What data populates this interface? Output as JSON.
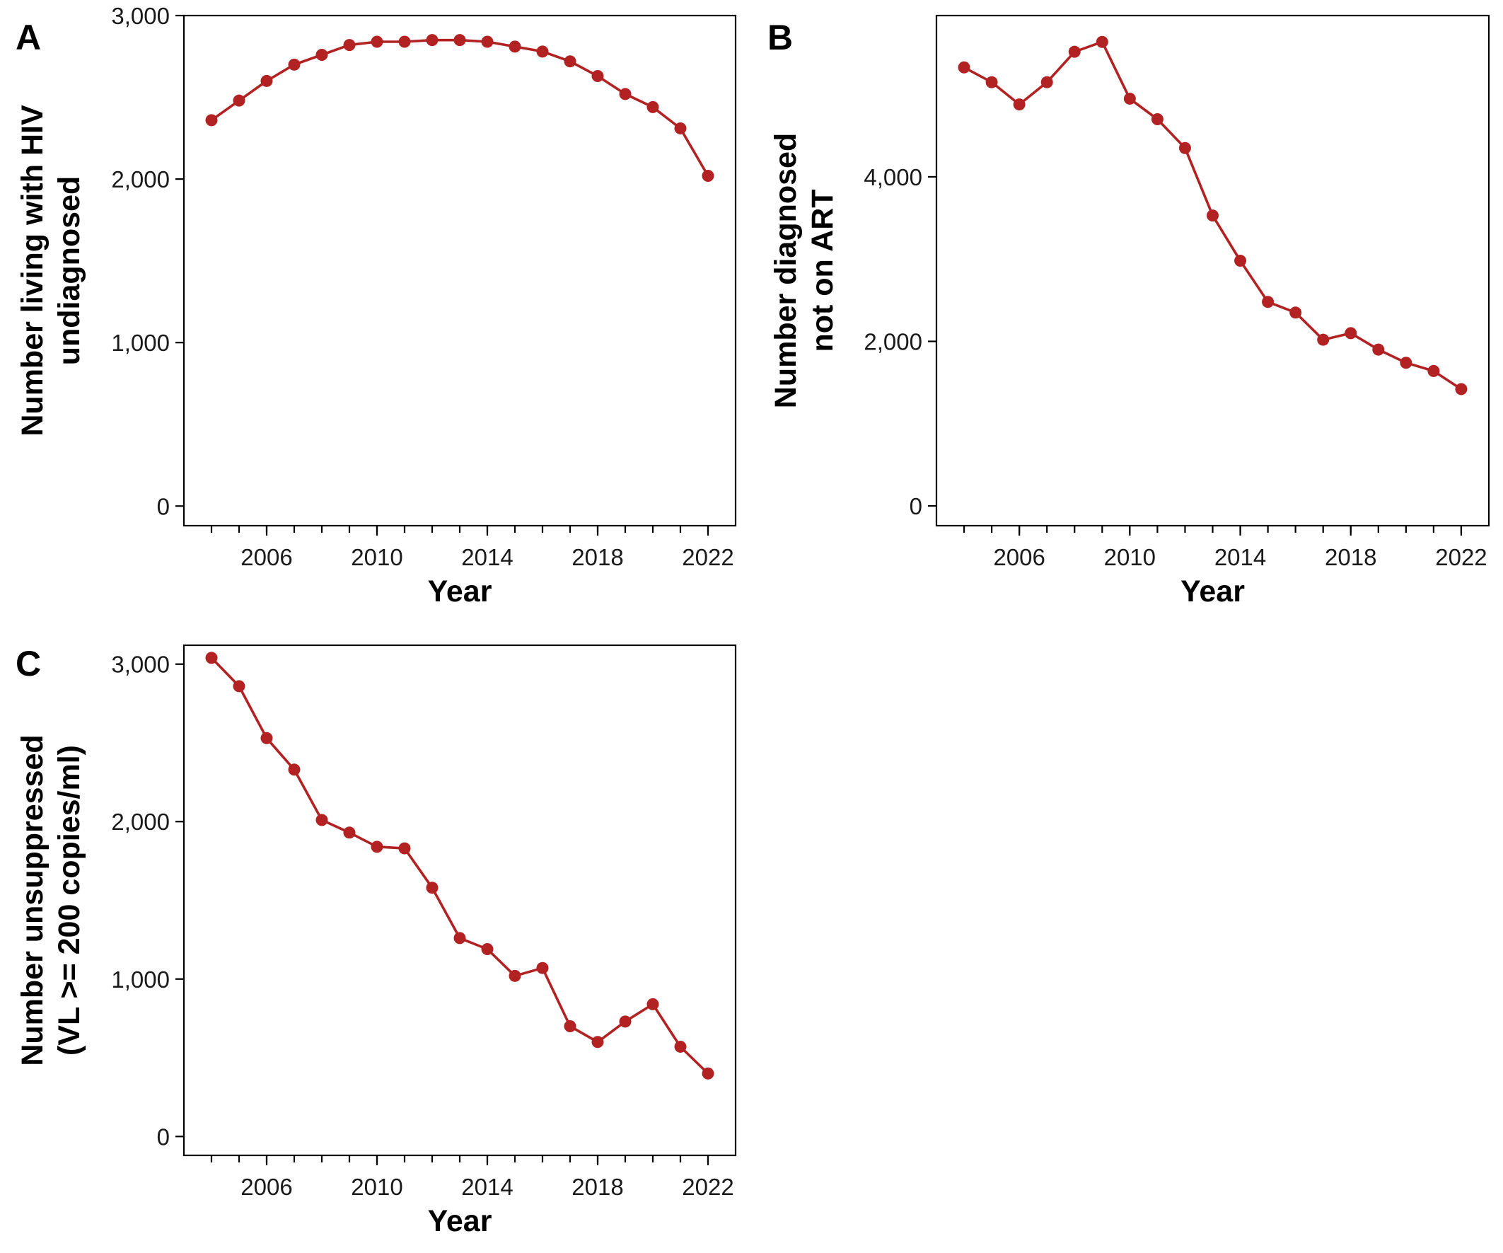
{
  "style": {
    "line_color": "#B22222",
    "point_color": "#B22222",
    "axis_color": "#000000",
    "background": "#ffffff"
  },
  "chart_data": [
    {
      "id": "A",
      "panel_label": "A",
      "type": "line",
      "xlabel": "Year",
      "ylabel": [
        "Number living with HIV",
        "undiagnosed"
      ],
      "x": [
        2004,
        2005,
        2006,
        2007,
        2008,
        2009,
        2010,
        2011,
        2012,
        2013,
        2014,
        2015,
        2016,
        2017,
        2018,
        2019,
        2020,
        2021,
        2022
      ],
      "series": [
        {
          "values": [
            2360,
            2480,
            2600,
            2700,
            2760,
            2820,
            2840,
            2840,
            2850,
            2850,
            2840,
            2810,
            2780,
            2720,
            2630,
            2520,
            2440,
            2310,
            2020
          ]
        }
      ],
      "xlim": [
        2003,
        2023
      ],
      "ylim": [
        -120,
        3000
      ],
      "xticks": [
        2006,
        2010,
        2014,
        2018,
        2022
      ],
      "xticks_minor": [
        2004,
        2005,
        2006,
        2007,
        2008,
        2009,
        2010,
        2011,
        2012,
        2013,
        2014,
        2015,
        2016,
        2017,
        2018,
        2019,
        2020,
        2021,
        2022
      ],
      "yticks": [
        0,
        1000,
        2000,
        3000
      ],
      "ytick_labels": [
        "0",
        "1,000",
        "2,000",
        "3,000"
      ],
      "grid": false,
      "legend": "none"
    },
    {
      "id": "B",
      "panel_label": "B",
      "type": "line",
      "xlabel": "Year",
      "ylabel": [
        "Number diagnosed",
        "not on ART"
      ],
      "x": [
        2004,
        2005,
        2006,
        2007,
        2008,
        2009,
        2010,
        2011,
        2012,
        2013,
        2014,
        2015,
        2016,
        2017,
        2018,
        2019,
        2020,
        2021,
        2022
      ],
      "series": [
        {
          "values": [
            5330,
            5150,
            4880,
            5150,
            5520,
            5640,
            4950,
            4700,
            4350,
            3530,
            2980,
            2480,
            2350,
            2020,
            2100,
            1900,
            1740,
            1640,
            1420
          ]
        }
      ],
      "xlim": [
        2003,
        2023
      ],
      "ylim": [
        -240,
        5960
      ],
      "xticks": [
        2006,
        2010,
        2014,
        2018,
        2022
      ],
      "xticks_minor": [
        2004,
        2005,
        2006,
        2007,
        2008,
        2009,
        2010,
        2011,
        2012,
        2013,
        2014,
        2015,
        2016,
        2017,
        2018,
        2019,
        2020,
        2021,
        2022
      ],
      "yticks": [
        0,
        2000,
        4000
      ],
      "ytick_labels": [
        "0",
        "2,000",
        "4,000"
      ],
      "grid": false,
      "legend": "none"
    },
    {
      "id": "C",
      "panel_label": "C",
      "type": "line",
      "xlabel": "Year",
      "ylabel": [
        "Number unsuppressed",
        "(VL >= 200 copies/ml)"
      ],
      "x": [
        2004,
        2005,
        2006,
        2007,
        2008,
        2009,
        2010,
        2011,
        2012,
        2013,
        2014,
        2015,
        2016,
        2017,
        2018,
        2019,
        2020,
        2021,
        2022
      ],
      "series": [
        {
          "values": [
            3040,
            2860,
            2530,
            2330,
            2010,
            1930,
            1840,
            1830,
            1580,
            1260,
            1190,
            1020,
            1070,
            700,
            600,
            730,
            840,
            570,
            400
          ]
        }
      ],
      "xlim": [
        2003,
        2023
      ],
      "ylim": [
        -120,
        3120
      ],
      "xticks": [
        2006,
        2010,
        2014,
        2018,
        2022
      ],
      "xticks_minor": [
        2004,
        2005,
        2006,
        2007,
        2008,
        2009,
        2010,
        2011,
        2012,
        2013,
        2014,
        2015,
        2016,
        2017,
        2018,
        2019,
        2020,
        2021,
        2022
      ],
      "yticks": [
        0,
        1000,
        2000,
        3000
      ],
      "ytick_labels": [
        "0",
        "1,000",
        "2,000",
        "3,000"
      ],
      "grid": false,
      "legend": "none"
    }
  ]
}
